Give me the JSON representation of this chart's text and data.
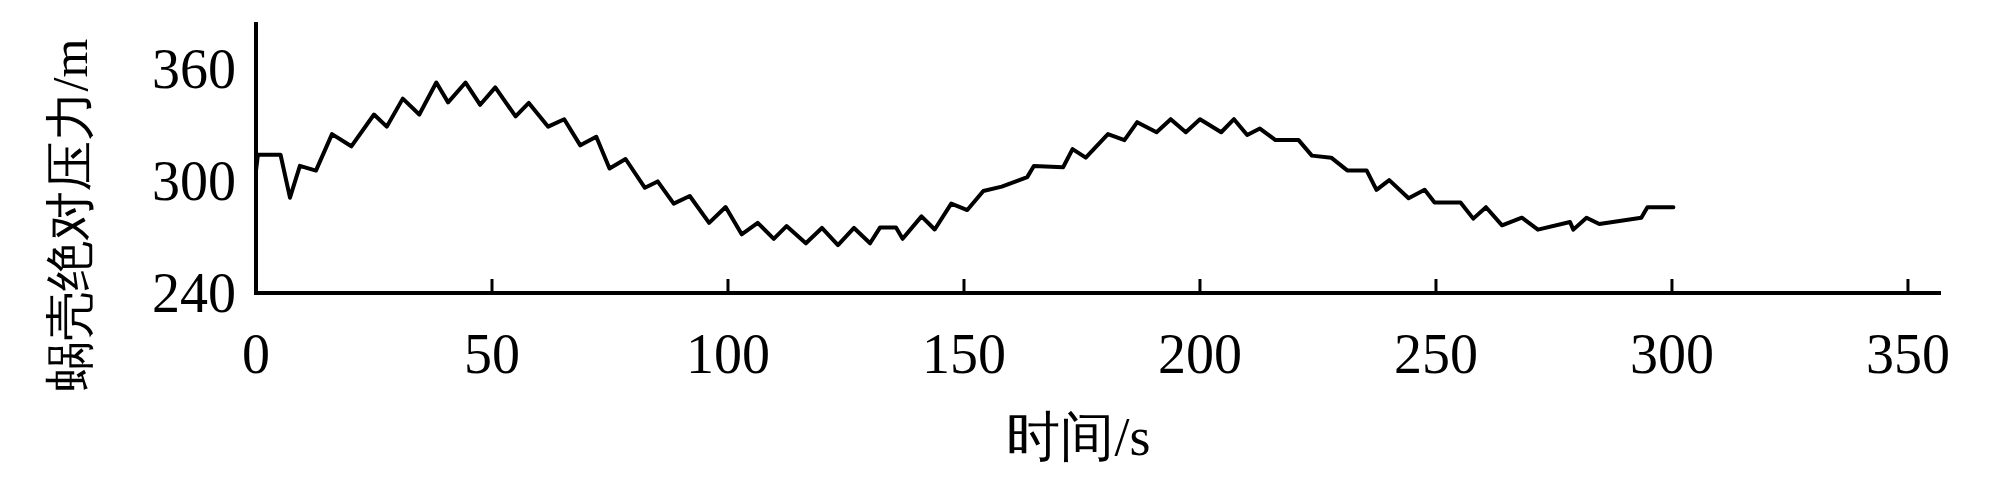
{
  "chart_data": {
    "type": "line",
    "xlabel": "时间/s",
    "ylabel": "蜗壳绝对压力/m",
    "color": "#000000",
    "x": [
      0,
      0.4,
      5.2,
      7.2,
      9.3,
      12.7,
      16.1,
      20.2,
      25,
      27.7,
      31.1,
      34.6,
      38.2,
      40.7,
      44.4,
      47.5,
      50.7,
      55,
      57.8,
      61.9,
      65.3,
      68.7,
      72.1,
      74.9,
      78.3,
      82.4,
      85.1,
      88.5,
      91.9,
      96,
      99.5,
      102.9,
      106.3,
      109.7,
      112.4,
      116.5,
      119.9,
      123.3,
      126.7,
      130.1,
      132.2,
      135.6,
      137,
      141,
      143.8,
      147.3,
      150.7,
      154.1,
      158,
      163.4,
      164.8,
      171,
      173,
      175.8,
      180.5,
      184,
      186.7,
      190.8,
      193.8,
      197,
      200,
      204.5,
      207.2,
      210,
      212.7,
      216,
      220.9,
      223.7,
      227.8,
      231.2,
      235.3,
      237.4,
      240.1,
      244.2,
      247.6,
      249.7,
      255.2,
      257.9,
      260.6,
      264,
      268.2,
      271.6,
      278.4,
      279.1,
      281.9,
      284.6,
      293.5,
      294.8,
      300.3
    ],
    "values": [
      305.5,
      314,
      314,
      291,
      308,
      305.5,
      325,
      318.5,
      335.5,
      329,
      344,
      335.5,
      352.6,
      342,
      352.6,
      340.7,
      350,
      334.5,
      341.7,
      329,
      333,
      319,
      323.6,
      306.6,
      311.7,
      296.3,
      299.7,
      287.8,
      291.9,
      277.5,
      286,
      271.4,
      277.5,
      269,
      275.8,
      266.6,
      274.8,
      265.6,
      274.8,
      266.6,
      275,
      275,
      269,
      281,
      274,
      287.8,
      284.4,
      294.6,
      296.9,
      302,
      308,
      307.3,
      317,
      312.4,
      325,
      321.8,
      331.4,
      326,
      333,
      326,
      333,
      326,
      333,
      324.5,
      328,
      321.8,
      321.8,
      313.5,
      312.4,
      305.6,
      305.6,
      295.2,
      300.4,
      290.7,
      295.2,
      288.4,
      288.4,
      279.8,
      285.9,
      276.2,
      280.3,
      273.9,
      278,
      273.9,
      280.3,
      276.9,
      280.3,
      285.9,
      285.9
    ],
    "xlim": [
      0,
      357
    ],
    "ylim": [
      240,
      385
    ],
    "xticks": [
      0,
      50,
      100,
      150,
      200,
      250,
      300,
      350
    ],
    "yticks": [
      240,
      300,
      360
    ]
  }
}
